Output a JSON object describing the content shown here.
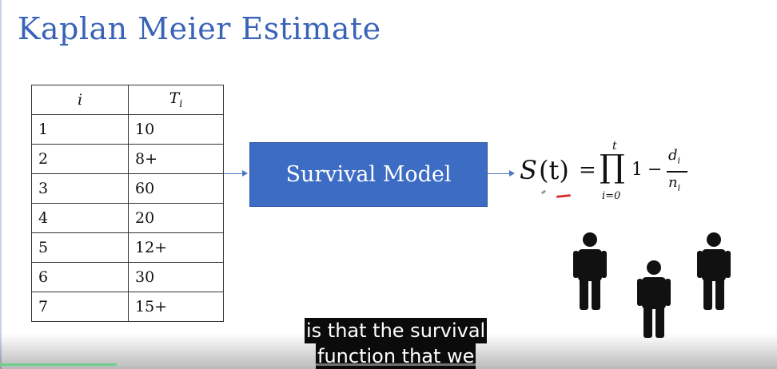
{
  "slide": {
    "title": "Kaplan Meier Estimate",
    "table": {
      "headers": [
        "i",
        "T"
      ],
      "header_subscript": "i",
      "rows": [
        [
          "1",
          "10"
        ],
        [
          "2",
          "8+"
        ],
        [
          "3",
          "60"
        ],
        [
          "4",
          "20"
        ],
        [
          "5",
          "12+"
        ],
        [
          "6",
          "30"
        ],
        [
          "7",
          "15+"
        ]
      ]
    },
    "model_label": "Survival Model",
    "formula": {
      "lhs_func": "S",
      "lhs_arg": "(t)",
      "equals": "=",
      "product_symbol": "∏",
      "upper_limit": "t",
      "lower_limit": "i=0",
      "one": "1",
      "minus": "−",
      "numerator": "d",
      "numerator_sub": "i",
      "denominator": "n",
      "denominator_sub": "i"
    },
    "icons": [
      "person-icon",
      "person-icon",
      "person-icon"
    ],
    "colors": {
      "title": "#3a63b8",
      "model_box": "#3d6cc4",
      "annotation": "#d63535"
    }
  },
  "caption": {
    "line1": "is that the survival",
    "line2": "function that we"
  },
  "player": {
    "progress_fraction": 0.15
  }
}
